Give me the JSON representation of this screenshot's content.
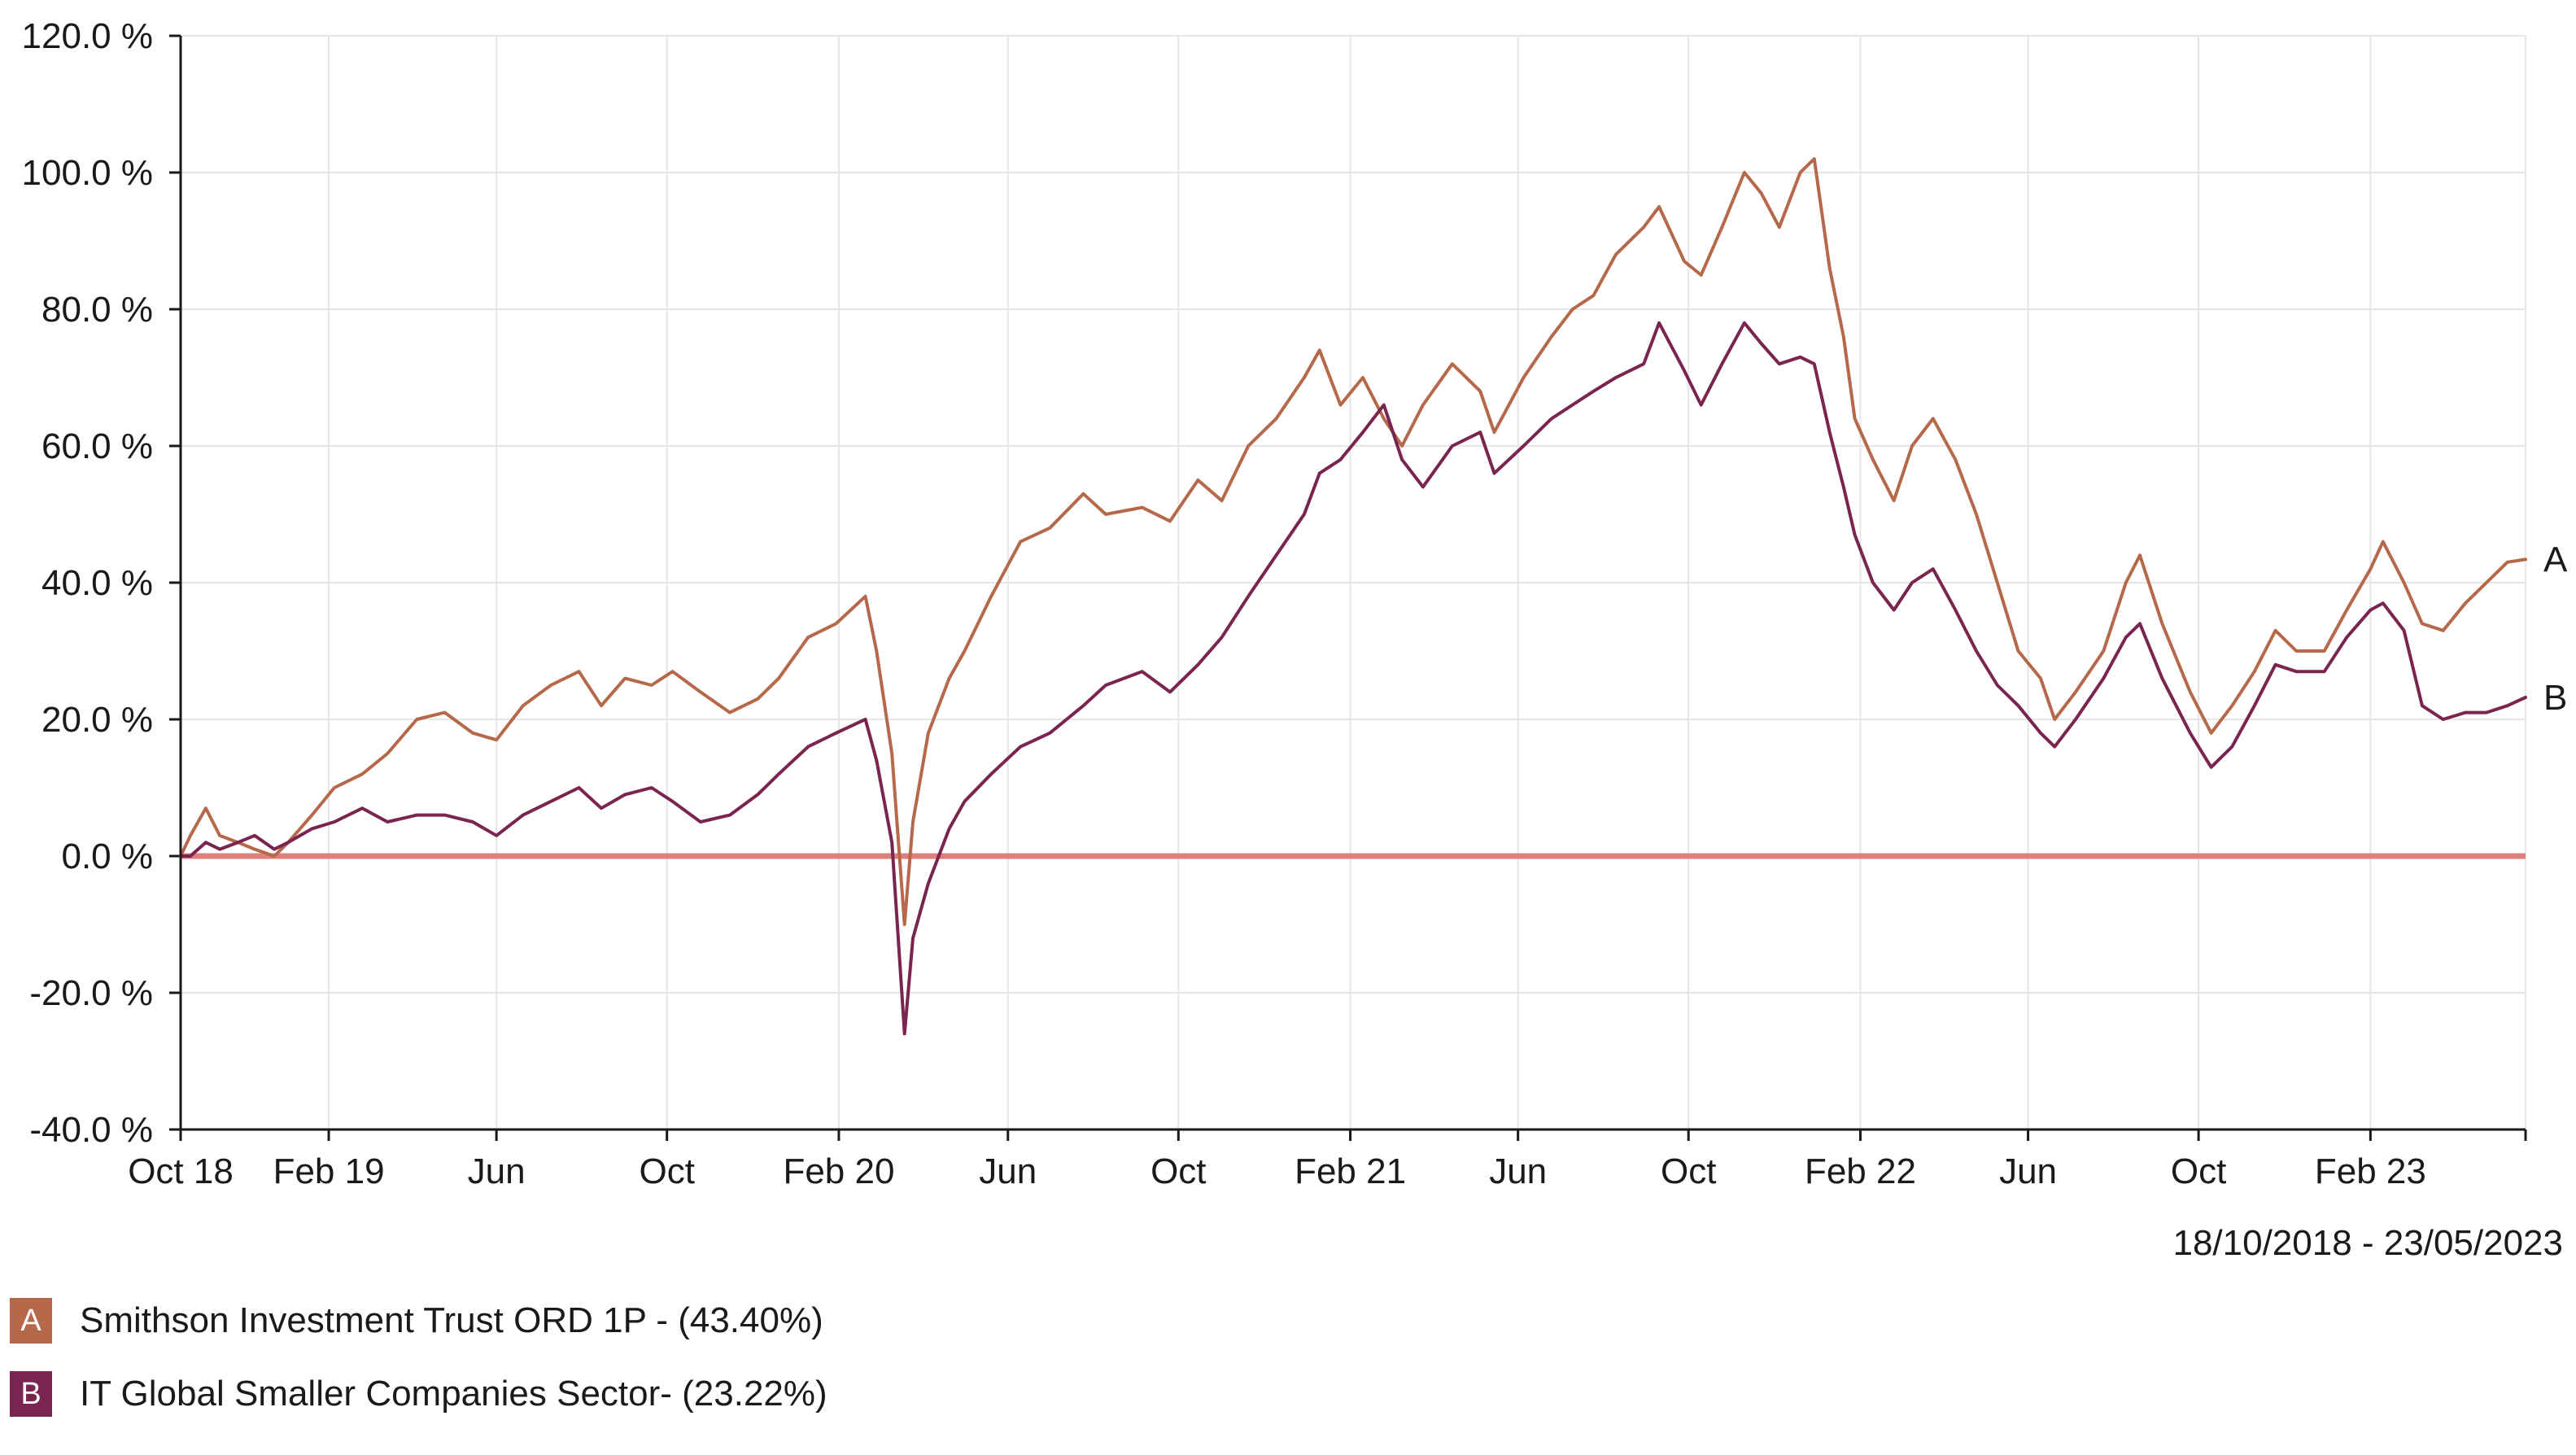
{
  "chart_data": {
    "type": "line",
    "title": "",
    "xlabel": "",
    "ylabel": "",
    "x_ticks": [
      "Oct 18",
      "Feb 19",
      "Jun",
      "Oct",
      "Feb 20",
      "Jun",
      "Oct",
      "Feb 21",
      "Jun",
      "Oct",
      "Feb 22",
      "Jun",
      "Oct",
      "Feb 23"
    ],
    "y_ticks": [
      "120.0 %",
      "100.0 %",
      "80.0 %",
      "60.0 %",
      "40.0 %",
      "20.0 %",
      "0.0 %",
      "-20.0 %",
      "-40.0 %"
    ],
    "ylim": [
      -40,
      120
    ],
    "xlim": [
      "2018-10-18",
      "2023-05-23"
    ],
    "date_range": "18/10/2018 - 23/05/2023",
    "grid": true,
    "baseline": 0,
    "colors": {
      "baseline": "#e07d7d",
      "grid": "#e6e6e6",
      "axis": "#1a1a1a"
    },
    "series": [
      {
        "name": "Smithson Investment Trust ORD 1P - (43.40%)",
        "label": "A",
        "color": "#b5694a",
        "final_value": 43.4,
        "points": [
          [
            "2018-10-18",
            0
          ],
          [
            "2018-10-25",
            3
          ],
          [
            "2018-11-05",
            7
          ],
          [
            "2018-11-15",
            3
          ],
          [
            "2018-11-28",
            2
          ],
          [
            "2018-12-10",
            1
          ],
          [
            "2018-12-24",
            0
          ],
          [
            "2019-01-03",
            2
          ],
          [
            "2019-01-20",
            6
          ],
          [
            "2019-02-05",
            10
          ],
          [
            "2019-02-25",
            12
          ],
          [
            "2019-03-15",
            15
          ],
          [
            "2019-04-05",
            20
          ],
          [
            "2019-04-25",
            21
          ],
          [
            "2019-05-15",
            18
          ],
          [
            "2019-06-01",
            17
          ],
          [
            "2019-06-20",
            22
          ],
          [
            "2019-07-10",
            25
          ],
          [
            "2019-07-30",
            27
          ],
          [
            "2019-08-15",
            22
          ],
          [
            "2019-09-01",
            26
          ],
          [
            "2019-09-20",
            25
          ],
          [
            "2019-10-05",
            27
          ],
          [
            "2019-10-25",
            24
          ],
          [
            "2019-11-15",
            21
          ],
          [
            "2019-12-05",
            23
          ],
          [
            "2019-12-20",
            26
          ],
          [
            "2020-01-10",
            32
          ],
          [
            "2020-01-30",
            34
          ],
          [
            "2020-02-20",
            38
          ],
          [
            "2020-02-28",
            30
          ],
          [
            "2020-03-10",
            15
          ],
          [
            "2020-03-19",
            -10
          ],
          [
            "2020-03-25",
            5
          ],
          [
            "2020-04-05",
            18
          ],
          [
            "2020-04-20",
            26
          ],
          [
            "2020-05-01",
            30
          ],
          [
            "2020-05-20",
            38
          ],
          [
            "2020-06-10",
            46
          ],
          [
            "2020-07-01",
            48
          ],
          [
            "2020-07-25",
            53
          ],
          [
            "2020-08-10",
            50
          ],
          [
            "2020-09-05",
            51
          ],
          [
            "2020-09-25",
            49
          ],
          [
            "2020-10-15",
            55
          ],
          [
            "2020-11-01",
            52
          ],
          [
            "2020-11-20",
            60
          ],
          [
            "2020-12-10",
            64
          ],
          [
            "2020-12-30",
            70
          ],
          [
            "2021-01-10",
            74
          ],
          [
            "2021-01-25",
            66
          ],
          [
            "2021-02-10",
            70
          ],
          [
            "2021-02-25",
            64
          ],
          [
            "2021-03-10",
            60
          ],
          [
            "2021-03-25",
            66
          ],
          [
            "2021-04-15",
            72
          ],
          [
            "2021-05-05",
            68
          ],
          [
            "2021-05-15",
            62
          ],
          [
            "2021-06-05",
            70
          ],
          [
            "2021-06-25",
            76
          ],
          [
            "2021-07-10",
            80
          ],
          [
            "2021-07-25",
            82
          ],
          [
            "2021-08-10",
            88
          ],
          [
            "2021-08-30",
            92
          ],
          [
            "2021-09-10",
            95
          ],
          [
            "2021-09-28",
            87
          ],
          [
            "2021-10-10",
            85
          ],
          [
            "2021-10-25",
            92
          ],
          [
            "2021-11-10",
            100
          ],
          [
            "2021-11-22",
            97
          ],
          [
            "2021-12-05",
            92
          ],
          [
            "2021-12-20",
            100
          ],
          [
            "2021-12-30",
            102
          ],
          [
            "2022-01-10",
            86
          ],
          [
            "2022-01-20",
            76
          ],
          [
            "2022-01-28",
            64
          ],
          [
            "2022-02-10",
            58
          ],
          [
            "2022-02-25",
            52
          ],
          [
            "2022-03-10",
            60
          ],
          [
            "2022-03-25",
            64
          ],
          [
            "2022-04-10",
            58
          ],
          [
            "2022-04-25",
            50
          ],
          [
            "2022-05-10",
            40
          ],
          [
            "2022-05-25",
            30
          ],
          [
            "2022-06-10",
            26
          ],
          [
            "2022-06-20",
            20
          ],
          [
            "2022-07-05",
            24
          ],
          [
            "2022-07-25",
            30
          ],
          [
            "2022-08-10",
            40
          ],
          [
            "2022-08-20",
            44
          ],
          [
            "2022-09-05",
            34
          ],
          [
            "2022-09-25",
            24
          ],
          [
            "2022-10-10",
            18
          ],
          [
            "2022-10-25",
            22
          ],
          [
            "2022-11-10",
            27
          ],
          [
            "2022-11-25",
            33
          ],
          [
            "2022-12-10",
            30
          ],
          [
            "2022-12-30",
            30
          ],
          [
            "2023-01-15",
            36
          ],
          [
            "2023-02-01",
            42
          ],
          [
            "2023-02-10",
            46
          ],
          [
            "2023-02-25",
            40
          ],
          [
            "2023-03-10",
            34
          ],
          [
            "2023-03-25",
            33
          ],
          [
            "2023-04-10",
            37
          ],
          [
            "2023-04-25",
            40
          ],
          [
            "2023-05-10",
            43
          ],
          [
            "2023-05-23",
            43.4
          ]
        ]
      },
      {
        "name": "IT Global Smaller Companies Sector- (23.22%)",
        "label": "B",
        "color": "#7a2450",
        "final_value": 23.22,
        "points": [
          [
            "2018-10-18",
            0
          ],
          [
            "2018-10-25",
            0
          ],
          [
            "2018-11-05",
            2
          ],
          [
            "2018-11-15",
            1
          ],
          [
            "2018-11-28",
            2
          ],
          [
            "2018-12-10",
            3
          ],
          [
            "2018-12-24",
            1
          ],
          [
            "2019-01-03",
            2
          ],
          [
            "2019-01-20",
            4
          ],
          [
            "2019-02-05",
            5
          ],
          [
            "2019-02-25",
            7
          ],
          [
            "2019-03-15",
            5
          ],
          [
            "2019-04-05",
            6
          ],
          [
            "2019-04-25",
            6
          ],
          [
            "2019-05-15",
            5
          ],
          [
            "2019-06-01",
            3
          ],
          [
            "2019-06-20",
            6
          ],
          [
            "2019-07-10",
            8
          ],
          [
            "2019-07-30",
            10
          ],
          [
            "2019-08-15",
            7
          ],
          [
            "2019-09-01",
            9
          ],
          [
            "2019-09-20",
            10
          ],
          [
            "2019-10-05",
            8
          ],
          [
            "2019-10-25",
            5
          ],
          [
            "2019-11-15",
            6
          ],
          [
            "2019-12-05",
            9
          ],
          [
            "2019-12-20",
            12
          ],
          [
            "2020-01-10",
            16
          ],
          [
            "2020-01-30",
            18
          ],
          [
            "2020-02-20",
            20
          ],
          [
            "2020-02-28",
            14
          ],
          [
            "2020-03-10",
            2
          ],
          [
            "2020-03-19",
            -26
          ],
          [
            "2020-03-25",
            -12
          ],
          [
            "2020-04-05",
            -4
          ],
          [
            "2020-04-20",
            4
          ],
          [
            "2020-05-01",
            8
          ],
          [
            "2020-05-20",
            12
          ],
          [
            "2020-06-10",
            16
          ],
          [
            "2020-07-01",
            18
          ],
          [
            "2020-07-25",
            22
          ],
          [
            "2020-08-10",
            25
          ],
          [
            "2020-09-05",
            27
          ],
          [
            "2020-09-25",
            24
          ],
          [
            "2020-10-15",
            28
          ],
          [
            "2020-11-01",
            32
          ],
          [
            "2020-11-20",
            38
          ],
          [
            "2020-12-10",
            44
          ],
          [
            "2020-12-30",
            50
          ],
          [
            "2021-01-10",
            56
          ],
          [
            "2021-01-25",
            58
          ],
          [
            "2021-02-10",
            62
          ],
          [
            "2021-02-25",
            66
          ],
          [
            "2021-03-10",
            58
          ],
          [
            "2021-03-25",
            54
          ],
          [
            "2021-04-15",
            60
          ],
          [
            "2021-05-05",
            62
          ],
          [
            "2021-05-15",
            56
          ],
          [
            "2021-06-05",
            60
          ],
          [
            "2021-06-25",
            64
          ],
          [
            "2021-07-10",
            66
          ],
          [
            "2021-07-25",
            68
          ],
          [
            "2021-08-10",
            70
          ],
          [
            "2021-08-30",
            72
          ],
          [
            "2021-09-10",
            78
          ],
          [
            "2021-09-28",
            71
          ],
          [
            "2021-10-10",
            66
          ],
          [
            "2021-10-25",
            72
          ],
          [
            "2021-11-10",
            78
          ],
          [
            "2021-11-22",
            75
          ],
          [
            "2021-12-05",
            72
          ],
          [
            "2021-12-20",
            73
          ],
          [
            "2021-12-30",
            72
          ],
          [
            "2022-01-10",
            62
          ],
          [
            "2022-01-20",
            54
          ],
          [
            "2022-01-28",
            47
          ],
          [
            "2022-02-10",
            40
          ],
          [
            "2022-02-25",
            36
          ],
          [
            "2022-03-10",
            40
          ],
          [
            "2022-03-25",
            42
          ],
          [
            "2022-04-10",
            36
          ],
          [
            "2022-04-25",
            30
          ],
          [
            "2022-05-10",
            25
          ],
          [
            "2022-05-25",
            22
          ],
          [
            "2022-06-10",
            18
          ],
          [
            "2022-06-20",
            16
          ],
          [
            "2022-07-05",
            20
          ],
          [
            "2022-07-25",
            26
          ],
          [
            "2022-08-10",
            32
          ],
          [
            "2022-08-20",
            34
          ],
          [
            "2022-09-05",
            26
          ],
          [
            "2022-09-25",
            18
          ],
          [
            "2022-10-10",
            13
          ],
          [
            "2022-10-25",
            16
          ],
          [
            "2022-11-10",
            22
          ],
          [
            "2022-11-25",
            28
          ],
          [
            "2022-12-10",
            27
          ],
          [
            "2022-12-30",
            27
          ],
          [
            "2023-01-15",
            32
          ],
          [
            "2023-02-01",
            36
          ],
          [
            "2023-02-10",
            37
          ],
          [
            "2023-02-25",
            33
          ],
          [
            "2023-03-10",
            22
          ],
          [
            "2023-03-25",
            20
          ],
          [
            "2023-04-10",
            21
          ],
          [
            "2023-04-25",
            21
          ],
          [
            "2023-05-10",
            22
          ],
          [
            "2023-05-23",
            23.22
          ]
        ]
      }
    ]
  },
  "legend": {
    "items": [
      {
        "label": "A",
        "text": "Smithson Investment Trust ORD 1P - (43.40%)"
      },
      {
        "label": "B",
        "text": "IT Global Smaller Companies Sector- (23.22%)"
      }
    ]
  }
}
